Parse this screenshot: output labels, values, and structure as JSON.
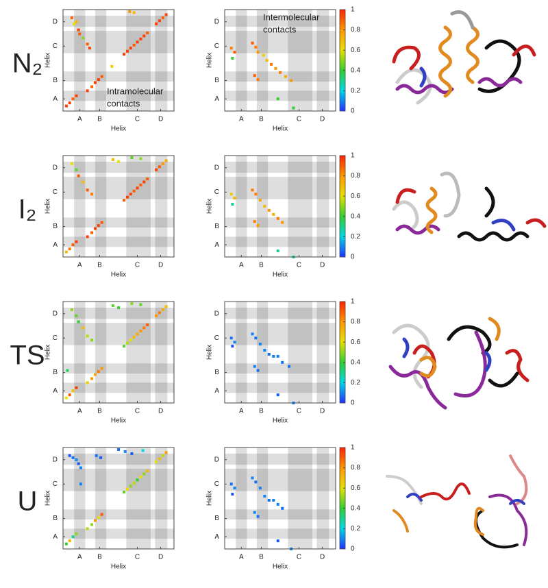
{
  "row_labels": [
    "N₂",
    "I₂",
    "TS",
    "U"
  ],
  "chart_data": [
    {
      "type": "contact_map",
      "xlabel": "Helix",
      "ylabel": "Helix",
      "annotation": [
        "Intramolecular",
        "contacts"
      ],
      "xlim": [
        0,
        100
      ],
      "ylim": [
        0,
        100
      ],
      "xticks": [
        {
          "value": 15,
          "label": "A"
        },
        {
          "value": 33,
          "label": "B"
        },
        {
          "value": 67,
          "label": "C"
        },
        {
          "value": 88,
          "label": "D"
        }
      ],
      "yticks": [
        {
          "value": 12,
          "label": "A"
        },
        {
          "value": 30,
          "label": "B"
        },
        {
          "value": 64,
          "label": "C"
        },
        {
          "value": 88,
          "label": "D"
        }
      ],
      "bands": [
        [
          10,
          20
        ],
        [
          29,
          39
        ],
        [
          57,
          79
        ],
        [
          83,
          94
        ]
      ],
      "colormap": [
        "#2030ff",
        "#00d8e8",
        "#30d030",
        "#e8e000",
        "#ff9800",
        "#ff2000"
      ],
      "clim": [
        0,
        1
      ],
      "x": [
        3,
        6,
        9,
        12,
        22,
        26,
        29,
        32,
        35,
        55,
        58,
        61,
        64,
        67,
        70,
        73,
        76,
        84,
        87,
        90,
        93,
        8,
        12,
        14,
        15,
        18,
        10,
        22,
        24,
        60,
        64,
        44
      ],
      "y": [
        5,
        8,
        12,
        15,
        20,
        24,
        28,
        31,
        34,
        56,
        59,
        62,
        65,
        68,
        71,
        74,
        77,
        86,
        89,
        92,
        95,
        92,
        88,
        80,
        76,
        72,
        86,
        66,
        62,
        98,
        97,
        44
      ],
      "values": [
        0.95,
        0.95,
        0.9,
        0.95,
        0.95,
        0.9,
        0.95,
        0.95,
        0.9,
        0.95,
        0.95,
        0.95,
        0.9,
        0.95,
        0.95,
        0.95,
        0.9,
        0.95,
        0.95,
        0.9,
        0.95,
        0.9,
        0.7,
        0.95,
        0.9,
        0.5,
        0.6,
        0.9,
        0.95,
        0.8,
        0.7,
        0.65
      ]
    },
    {
      "type": "contact_map",
      "xlabel": "Helix",
      "ylabel": "Helix",
      "annotation": [
        "Intermolecular",
        "contacts"
      ],
      "xlim": [
        0,
        100
      ],
      "ylim": [
        0,
        100
      ],
      "xticks": [
        {
          "value": 15,
          "label": "A"
        },
        {
          "value": 33,
          "label": "B"
        },
        {
          "value": 67,
          "label": "C"
        },
        {
          "value": 88,
          "label": "D"
        }
      ],
      "yticks": [
        {
          "value": 12,
          "label": "A"
        },
        {
          "value": 30,
          "label": "B"
        },
        {
          "value": 64,
          "label": "C"
        },
        {
          "value": 88,
          "label": "D"
        }
      ],
      "bands": [
        [
          10,
          20
        ],
        [
          29,
          39
        ],
        [
          57,
          79
        ],
        [
          83,
          94
        ]
      ],
      "colormap": [
        "#2030ff",
        "#00d8e8",
        "#30d030",
        "#e8e000",
        "#ff9800",
        "#ff2000"
      ],
      "clim": [
        0,
        1
      ],
      "cticks": [
        0,
        0.2,
        0.4,
        0.6,
        0.8,
        1
      ],
      "x": [
        6,
        9,
        7,
        25,
        28,
        30,
        35,
        38,
        42,
        46,
        50,
        55,
        60,
        27,
        30,
        48,
        62
      ],
      "y": [
        62,
        58,
        52,
        67,
        63,
        58,
        55,
        50,
        46,
        42,
        38,
        34,
        30,
        35,
        31,
        12,
        3
      ],
      "values": [
        0.85,
        0.9,
        0.4,
        0.9,
        0.85,
        0.8,
        0.65,
        0.7,
        0.85,
        0.8,
        0.85,
        0.75,
        0.8,
        0.9,
        0.85,
        0.4,
        0.4
      ]
    },
    {
      "type": "contact_map",
      "xlabel": "Helix",
      "ylabel": "Helix",
      "xlim": [
        0,
        100
      ],
      "ylim": [
        0,
        100
      ],
      "xticks": [
        {
          "value": 15,
          "label": "A"
        },
        {
          "value": 33,
          "label": "B"
        },
        {
          "value": 67,
          "label": "C"
        },
        {
          "value": 88,
          "label": "D"
        }
      ],
      "yticks": [
        {
          "value": 12,
          "label": "A"
        },
        {
          "value": 30,
          "label": "B"
        },
        {
          "value": 64,
          "label": "C"
        },
        {
          "value": 88,
          "label": "D"
        }
      ],
      "bands": [
        [
          10,
          20
        ],
        [
          29,
          39
        ],
        [
          57,
          79
        ],
        [
          83,
          94
        ]
      ],
      "colormap": [
        "#2030ff",
        "#00d8e8",
        "#30d030",
        "#e8e000",
        "#ff9800",
        "#ff2000"
      ],
      "clim": [
        0,
        1
      ],
      "x": [
        3,
        6,
        9,
        12,
        22,
        26,
        29,
        32,
        35,
        55,
        58,
        61,
        64,
        67,
        70,
        73,
        76,
        84,
        87,
        90,
        93,
        8,
        12,
        14,
        18,
        22,
        26,
        45,
        50,
        62,
        70
      ],
      "y": [
        5,
        8,
        12,
        15,
        20,
        24,
        28,
        31,
        34,
        56,
        59,
        62,
        65,
        68,
        71,
        74,
        77,
        86,
        89,
        92,
        95,
        92,
        86,
        80,
        74,
        66,
        62,
        96,
        94,
        98,
        97
      ],
      "values": [
        0.7,
        0.85,
        0.9,
        0.95,
        0.95,
        0.9,
        0.95,
        0.95,
        0.9,
        0.9,
        0.95,
        0.95,
        0.9,
        0.95,
        0.9,
        0.95,
        0.9,
        0.95,
        0.9,
        0.8,
        0.75,
        0.6,
        0.45,
        0.9,
        0.7,
        0.9,
        0.85,
        0.7,
        0.6,
        0.45,
        0.5
      ]
    },
    {
      "type": "contact_map",
      "xlabel": "Helix",
      "ylabel": "Helix",
      "xlim": [
        0,
        100
      ],
      "ylim": [
        0,
        100
      ],
      "xticks": [
        {
          "value": 15,
          "label": "A"
        },
        {
          "value": 33,
          "label": "B"
        },
        {
          "value": 67,
          "label": "C"
        },
        {
          "value": 88,
          "label": "D"
        }
      ],
      "yticks": [
        {
          "value": 12,
          "label": "A"
        },
        {
          "value": 30,
          "label": "B"
        },
        {
          "value": 64,
          "label": "C"
        },
        {
          "value": 88,
          "label": "D"
        }
      ],
      "bands": [
        [
          10,
          20
        ],
        [
          29,
          39
        ],
        [
          57,
          79
        ],
        [
          83,
          94
        ]
      ],
      "colormap": [
        "#2030ff",
        "#00d8e8",
        "#30d030",
        "#e8e000",
        "#ff9800",
        "#ff2000"
      ],
      "clim": [
        0,
        1
      ],
      "cticks": [
        0,
        0.2,
        0.4,
        0.6,
        0.8,
        1
      ],
      "x": [
        6,
        9,
        7,
        25,
        28,
        32,
        36,
        40,
        44,
        48,
        52,
        27,
        30,
        48,
        62
      ],
      "y": [
        62,
        58,
        52,
        66,
        62,
        56,
        50,
        46,
        42,
        38,
        34,
        35,
        31,
        6,
        0
      ],
      "values": [
        0.65,
        0.7,
        0.3,
        0.85,
        0.85,
        0.75,
        0.7,
        0.8,
        0.75,
        0.85,
        0.8,
        0.85,
        0.8,
        0.3,
        0.3
      ]
    },
    {
      "type": "contact_map",
      "xlabel": "Helix",
      "ylabel": "Helix",
      "xlim": [
        0,
        100
      ],
      "ylim": [
        0,
        100
      ],
      "xticks": [
        {
          "value": 15,
          "label": "A"
        },
        {
          "value": 33,
          "label": "B"
        },
        {
          "value": 67,
          "label": "C"
        },
        {
          "value": 88,
          "label": "D"
        }
      ],
      "yticks": [
        {
          "value": 12,
          "label": "A"
        },
        {
          "value": 30,
          "label": "B"
        },
        {
          "value": 64,
          "label": "C"
        },
        {
          "value": 88,
          "label": "D"
        }
      ],
      "bands": [
        [
          10,
          20
        ],
        [
          29,
          39
        ],
        [
          57,
          79
        ],
        [
          83,
          94
        ]
      ],
      "colormap": [
        "#2030ff",
        "#00d8e8",
        "#30d030",
        "#e8e000",
        "#ff9800",
        "#ff2000"
      ],
      "clim": [
        0,
        1
      ],
      "x": [
        3,
        6,
        9,
        12,
        22,
        26,
        29,
        32,
        35,
        55,
        58,
        61,
        64,
        67,
        70,
        73,
        76,
        84,
        87,
        90,
        93,
        8,
        12,
        14,
        18,
        22,
        26,
        45,
        50,
        62,
        70,
        4
      ],
      "y": [
        5,
        8,
        12,
        15,
        20,
        24,
        28,
        31,
        34,
        56,
        59,
        62,
        65,
        68,
        71,
        74,
        77,
        86,
        89,
        92,
        95,
        92,
        86,
        80,
        74,
        66,
        62,
        96,
        94,
        98,
        97,
        32
      ],
      "values": [
        0.6,
        0.9,
        0.7,
        0.95,
        0.65,
        0.8,
        0.75,
        0.85,
        0.8,
        0.45,
        0.55,
        0.6,
        0.7,
        0.75,
        0.8,
        0.85,
        0.9,
        0.8,
        0.85,
        0.75,
        0.7,
        0.5,
        0.45,
        0.4,
        0.7,
        0.55,
        0.5,
        0.45,
        0.4,
        0.5,
        0.45,
        0.35
      ]
    },
    {
      "type": "contact_map",
      "xlabel": "Helix",
      "ylabel": "Helix",
      "xlim": [
        0,
        100
      ],
      "ylim": [
        0,
        100
      ],
      "xticks": [
        {
          "value": 15,
          "label": "A"
        },
        {
          "value": 33,
          "label": "B"
        },
        {
          "value": 67,
          "label": "C"
        },
        {
          "value": 88,
          "label": "D"
        }
      ],
      "yticks": [
        {
          "value": 12,
          "label": "A"
        },
        {
          "value": 30,
          "label": "B"
        },
        {
          "value": 64,
          "label": "C"
        },
        {
          "value": 88,
          "label": "D"
        }
      ],
      "bands": [
        [
          10,
          20
        ],
        [
          29,
          39
        ],
        [
          57,
          79
        ],
        [
          83,
          94
        ]
      ],
      "colormap": [
        "#2030ff",
        "#00d8e8",
        "#30d030",
        "#e8e000",
        "#ff9800",
        "#ff2000"
      ],
      "clim": [
        0,
        1
      ],
      "cticks": [
        0,
        0.2,
        0.4,
        0.6,
        0.8,
        1
      ],
      "x": [
        6,
        9,
        7,
        25,
        28,
        32,
        36,
        40,
        44,
        48,
        52,
        27,
        30,
        48,
        62,
        58
      ],
      "y": [
        64,
        60,
        56,
        68,
        64,
        58,
        52,
        48,
        46,
        46,
        40,
        36,
        32,
        8,
        0,
        36
      ],
      "values": [
        0.08,
        0.1,
        0.05,
        0.1,
        0.08,
        0.1,
        0.1,
        0.08,
        0.1,
        0.1,
        0.08,
        0.1,
        0.08,
        0.05,
        0.1,
        0.08
      ]
    },
    {
      "type": "contact_map",
      "xlabel": "Helix",
      "ylabel": "Helix",
      "xlim": [
        0,
        100
      ],
      "ylim": [
        0,
        100
      ],
      "xticks": [
        {
          "value": 15,
          "label": "A"
        },
        {
          "value": 33,
          "label": "B"
        },
        {
          "value": 67,
          "label": "C"
        },
        {
          "value": 88,
          "label": "D"
        }
      ],
      "yticks": [
        {
          "value": 12,
          "label": "A"
        },
        {
          "value": 30,
          "label": "B"
        },
        {
          "value": 64,
          "label": "C"
        },
        {
          "value": 88,
          "label": "D"
        }
      ],
      "bands": [
        [
          10,
          20
        ],
        [
          29,
          39
        ],
        [
          57,
          79
        ],
        [
          83,
          94
        ]
      ],
      "colormap": [
        "#2030ff",
        "#00d8e8",
        "#30d030",
        "#e8e000",
        "#ff9800",
        "#ff2000"
      ],
      "clim": [
        0,
        1
      ],
      "x": [
        3,
        6,
        9,
        12,
        22,
        26,
        29,
        32,
        35,
        55,
        58,
        61,
        64,
        67,
        70,
        73,
        76,
        84,
        87,
        90,
        93,
        6,
        9,
        12,
        14,
        16,
        30,
        34,
        50,
        56,
        62,
        72,
        16
      ],
      "y": [
        5,
        8,
        12,
        15,
        20,
        24,
        28,
        31,
        34,
        56,
        59,
        62,
        65,
        68,
        71,
        74,
        77,
        86,
        89,
        92,
        95,
        92,
        90,
        88,
        84,
        80,
        92,
        90,
        98,
        96,
        94,
        97,
        64
      ],
      "values": [
        0.4,
        0.7,
        0.3,
        0.5,
        0.55,
        0.5,
        0.8,
        0.6,
        0.9,
        0.45,
        0.6,
        0.5,
        0.55,
        0.4,
        0.6,
        0.5,
        0.7,
        0.6,
        0.7,
        0.55,
        0.8,
        0.05,
        0.08,
        0.1,
        0.05,
        0.1,
        0.08,
        0.05,
        0.08,
        0.1,
        0.05,
        0.2,
        0.1
      ]
    },
    {
      "type": "contact_map",
      "xlabel": "Helix",
      "ylabel": "Helix",
      "xlim": [
        0,
        100
      ],
      "ylim": [
        0,
        100
      ],
      "xticks": [
        {
          "value": 15,
          "label": "A"
        },
        {
          "value": 33,
          "label": "B"
        },
        {
          "value": 67,
          "label": "C"
        },
        {
          "value": 88,
          "label": "D"
        }
      ],
      "yticks": [
        {
          "value": 12,
          "label": "A"
        },
        {
          "value": 30,
          "label": "B"
        },
        {
          "value": 64,
          "label": "C"
        },
        {
          "value": 88,
          "label": "D"
        }
      ],
      "bands": [
        [
          10,
          20
        ],
        [
          29,
          39
        ],
        [
          57,
          79
        ],
        [
          83,
          94
        ]
      ],
      "colormap": [
        "#2030ff",
        "#00d8e8",
        "#30d030",
        "#e8e000",
        "#ff9800",
        "#ff2000"
      ],
      "clim": [
        0,
        1
      ],
      "cticks": [
        0,
        0.2,
        0.4,
        0.6,
        0.8,
        1
      ],
      "x": [
        6,
        9,
        7,
        25,
        28,
        32,
        36,
        40,
        44,
        48,
        52,
        27,
        30,
        48,
        60
      ],
      "y": [
        64,
        60,
        54,
        70,
        66,
        60,
        52,
        48,
        48,
        44,
        40,
        36,
        32,
        8,
        0
      ],
      "values": [
        0.08,
        0.1,
        0.05,
        0.1,
        0.08,
        0.1,
        0.1,
        0.08,
        0.1,
        0.1,
        0.08,
        0.1,
        0.08,
        0.05,
        0.1
      ]
    }
  ]
}
